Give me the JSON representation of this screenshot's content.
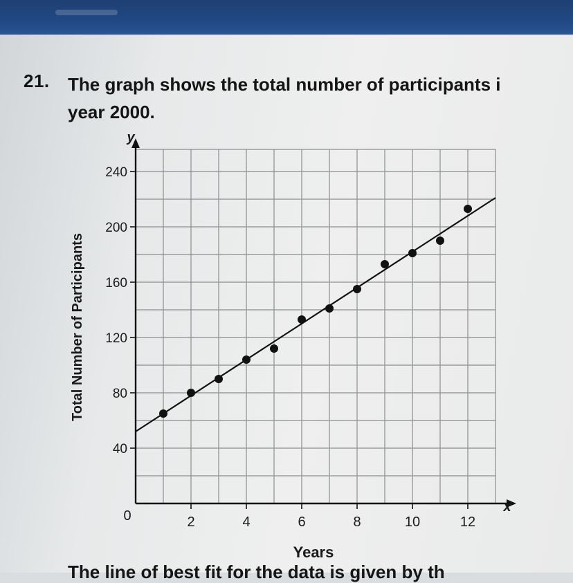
{
  "question": {
    "number": "21.",
    "line1": "The graph shows the total number of participants i",
    "line2": "year 2000.",
    "continuation": "The line of best fit for the data is given by th"
  },
  "chart_data": {
    "type": "scatter",
    "title": "",
    "xlabel": "Years",
    "ylabel": "Total Number of Participants",
    "x_axis_letter": "x",
    "y_axis_letter": "y",
    "origin_label": "0",
    "xlim": [
      0,
      13
    ],
    "ylim": [
      0,
      250
    ],
    "x_ticks": [
      2,
      4,
      6,
      8,
      10,
      12
    ],
    "y_ticks": [
      40,
      80,
      120,
      160,
      200,
      240
    ],
    "grid": true,
    "points": [
      {
        "x": 1,
        "y": 65
      },
      {
        "x": 2,
        "y": 80
      },
      {
        "x": 3,
        "y": 90
      },
      {
        "x": 4,
        "y": 104
      },
      {
        "x": 5,
        "y": 112
      },
      {
        "x": 6,
        "y": 133
      },
      {
        "x": 7,
        "y": 141
      },
      {
        "x": 8,
        "y": 155
      },
      {
        "x": 9,
        "y": 173
      },
      {
        "x": 10,
        "y": 181
      },
      {
        "x": 11,
        "y": 190
      },
      {
        "x": 12,
        "y": 213
      }
    ],
    "best_fit_line": {
      "slope": 13,
      "intercept": 52,
      "x_range": [
        0,
        13
      ]
    }
  }
}
